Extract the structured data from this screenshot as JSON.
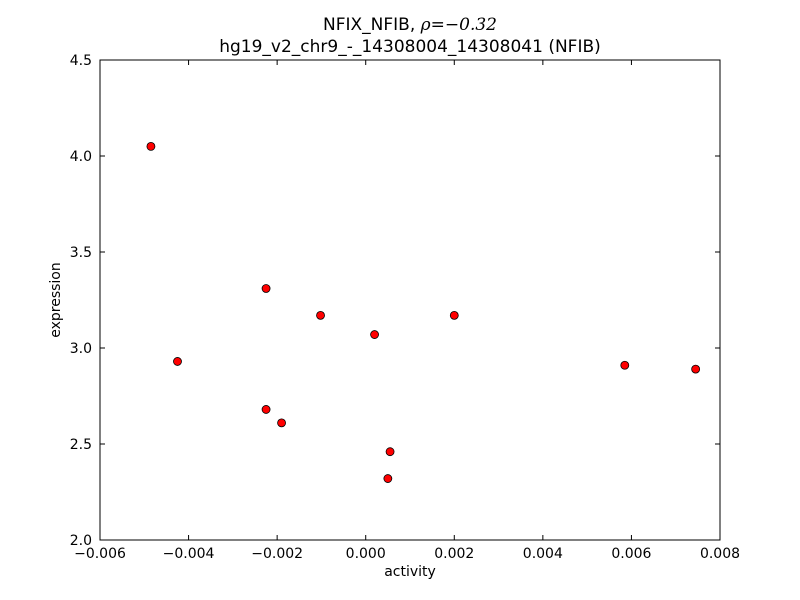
{
  "chart_data": {
    "type": "scatter",
    "title_prefix": "NFIX_NFIB, ",
    "title_symbol": "ρ",
    "title_value": "=−0.32",
    "subtitle": "hg19_v2_chr9_-_14308004_14308041 (NFIB)",
    "xlabel": "activity",
    "ylabel": "expression",
    "xlim": [
      -0.006,
      0.008
    ],
    "ylim": [
      2.0,
      4.5
    ],
    "xticks": [
      -0.006,
      -0.004,
      -0.002,
      0.0,
      0.002,
      0.004,
      0.006,
      0.008
    ],
    "xtick_labels": [
      "−0.006",
      "−0.004",
      "−0.002",
      "0.000",
      "0.002",
      "0.004",
      "0.006",
      "0.008"
    ],
    "yticks": [
      2.0,
      2.5,
      3.0,
      3.5,
      4.0,
      4.5
    ],
    "ytick_labels": [
      "2.0",
      "2.5",
      "3.0",
      "3.5",
      "4.0",
      "4.5"
    ],
    "grid": false,
    "marker_color": "#ff0000",
    "marker_edge": "#000000",
    "points": [
      {
        "x": -0.00485,
        "y": 4.05
      },
      {
        "x": -0.00425,
        "y": 2.93
      },
      {
        "x": -0.00225,
        "y": 3.31
      },
      {
        "x": -0.00225,
        "y": 2.68
      },
      {
        "x": -0.0019,
        "y": 2.61
      },
      {
        "x": -0.00102,
        "y": 3.17
      },
      {
        "x": 0.0002,
        "y": 3.07
      },
      {
        "x": 0.0005,
        "y": 2.32
      },
      {
        "x": 0.00055,
        "y": 2.46
      },
      {
        "x": 0.002,
        "y": 3.17
      },
      {
        "x": 0.00585,
        "y": 2.91
      },
      {
        "x": 0.00745,
        "y": 2.89
      }
    ]
  }
}
